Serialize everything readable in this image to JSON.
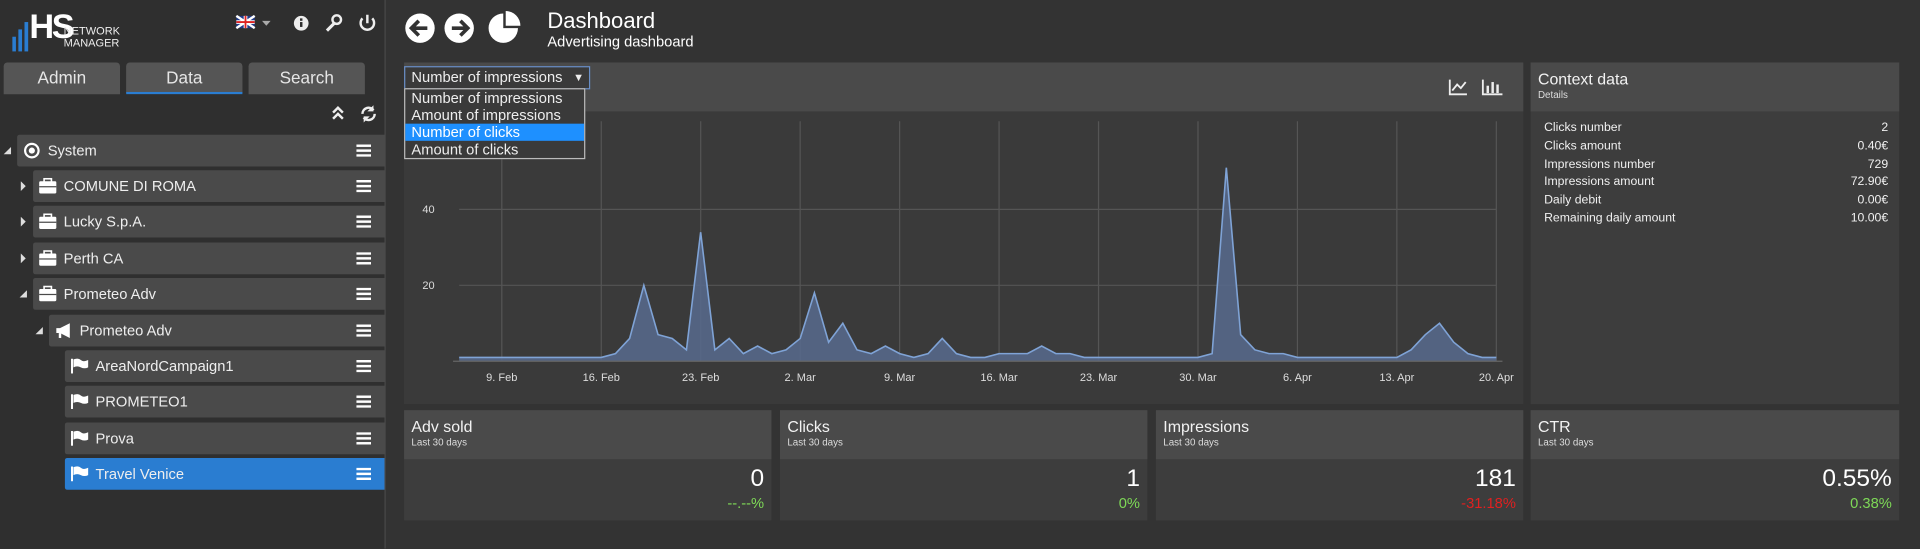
{
  "sidebar": {
    "logo": {
      "mark": "HS",
      "line1": "NETWORK",
      "line2": "MANAGER"
    },
    "tabs": [
      "Admin",
      "Data",
      "Search"
    ],
    "active_tab": 1,
    "tree": [
      {
        "label": "System",
        "depth": 0,
        "icon": "target"
      },
      {
        "label": "COMUNE DI ROMA",
        "depth": 1,
        "icon": "case"
      },
      {
        "label": "Lucky S.p.A.",
        "depth": 1,
        "icon": "case"
      },
      {
        "label": "Perth CA",
        "depth": 1,
        "icon": "case"
      },
      {
        "label": "Prometeo Adv",
        "depth": 1,
        "icon": "case"
      },
      {
        "label": "Prometeo Adv",
        "depth": 2,
        "icon": "megaphone"
      },
      {
        "label": "AreaNordCampaign1",
        "depth": 3,
        "icon": "flag"
      },
      {
        "label": "PROMETEO1",
        "depth": 3,
        "icon": "flag"
      },
      {
        "label": "Prova",
        "depth": 3,
        "icon": "flag"
      },
      {
        "label": "Travel Venice",
        "depth": 3,
        "icon": "flag",
        "selected": true
      }
    ]
  },
  "header": {
    "title": "Dashboard",
    "subtitle": "Advertising dashboard"
  },
  "metric_select": {
    "selected": "Number of impressions",
    "options": [
      "Number of impressions",
      "Amount of impressions",
      "Number of clicks",
      "Amount of clicks"
    ],
    "highlighted": 2
  },
  "chart_data": {
    "type": "area",
    "color": "#7fa3d6",
    "fill": "#56688a",
    "grid": true,
    "categories": [
      null,
      null,
      null,
      "9. Feb",
      null,
      null,
      null,
      null,
      null,
      null,
      "16. Feb",
      null,
      null,
      null,
      null,
      null,
      null,
      "23. Feb",
      null,
      null,
      null,
      null,
      null,
      null,
      "2. Mar",
      null,
      null,
      null,
      null,
      null,
      null,
      "9. Mar",
      null,
      null,
      null,
      null,
      null,
      null,
      "16. Mar",
      null,
      null,
      null,
      null,
      null,
      null,
      "23. Mar",
      null,
      null,
      null,
      null,
      null,
      null,
      "30. Mar",
      null,
      null,
      null,
      null,
      null,
      null,
      "6. Apr",
      null,
      null,
      null,
      null,
      null,
      null,
      "13. Apr",
      null,
      null,
      null,
      null,
      null,
      null,
      "20. Apr"
    ],
    "values": [
      1,
      1,
      1,
      1,
      1,
      1,
      1,
      1,
      1,
      1,
      1,
      2,
      6,
      20,
      7,
      6,
      3,
      34,
      3,
      6,
      2,
      4,
      2,
      3,
      6,
      18,
      5,
      10,
      3,
      2,
      4,
      2,
      1,
      2,
      6,
      2,
      1,
      1,
      2,
      2,
      2,
      4,
      2,
      2,
      1,
      1,
      1,
      1,
      1,
      1,
      1,
      1,
      1,
      2,
      51,
      7,
      3,
      2,
      2,
      1,
      1,
      1,
      1,
      1,
      1,
      1,
      1,
      3,
      7,
      10,
      5,
      2,
      1,
      1
    ],
    "ylim": [
      0,
      60
    ],
    "yticks": [
      20,
      40
    ]
  },
  "context": {
    "title": "Context data",
    "subtitle": "Details",
    "rows": [
      [
        "Clicks number",
        "2"
      ],
      [
        "Clicks amount",
        "0.40€"
      ],
      [
        "Impressions number",
        "729"
      ],
      [
        "Impressions amount",
        "72.90€"
      ],
      [
        "Daily debit",
        "0.00€"
      ],
      [
        "Remaining daily amount",
        "10.00€"
      ]
    ]
  },
  "stats": [
    {
      "title": "Adv sold",
      "subtitle": "Last 30 days",
      "value": "0",
      "change": "--.--%",
      "change_color": "#7ed957"
    },
    {
      "title": "Clicks",
      "subtitle": "Last 30 days",
      "value": "1",
      "change": "0%",
      "change_color": "#7ed957"
    },
    {
      "title": "Impressions",
      "subtitle": "Last 30 days",
      "value": "181",
      "change": "-31.18%",
      "change_color": "#e02020"
    },
    {
      "title": "CTR",
      "subtitle": "Last 30 days",
      "value": "0.55%",
      "change": "0.38%",
      "change_color": "#7ed957"
    }
  ]
}
